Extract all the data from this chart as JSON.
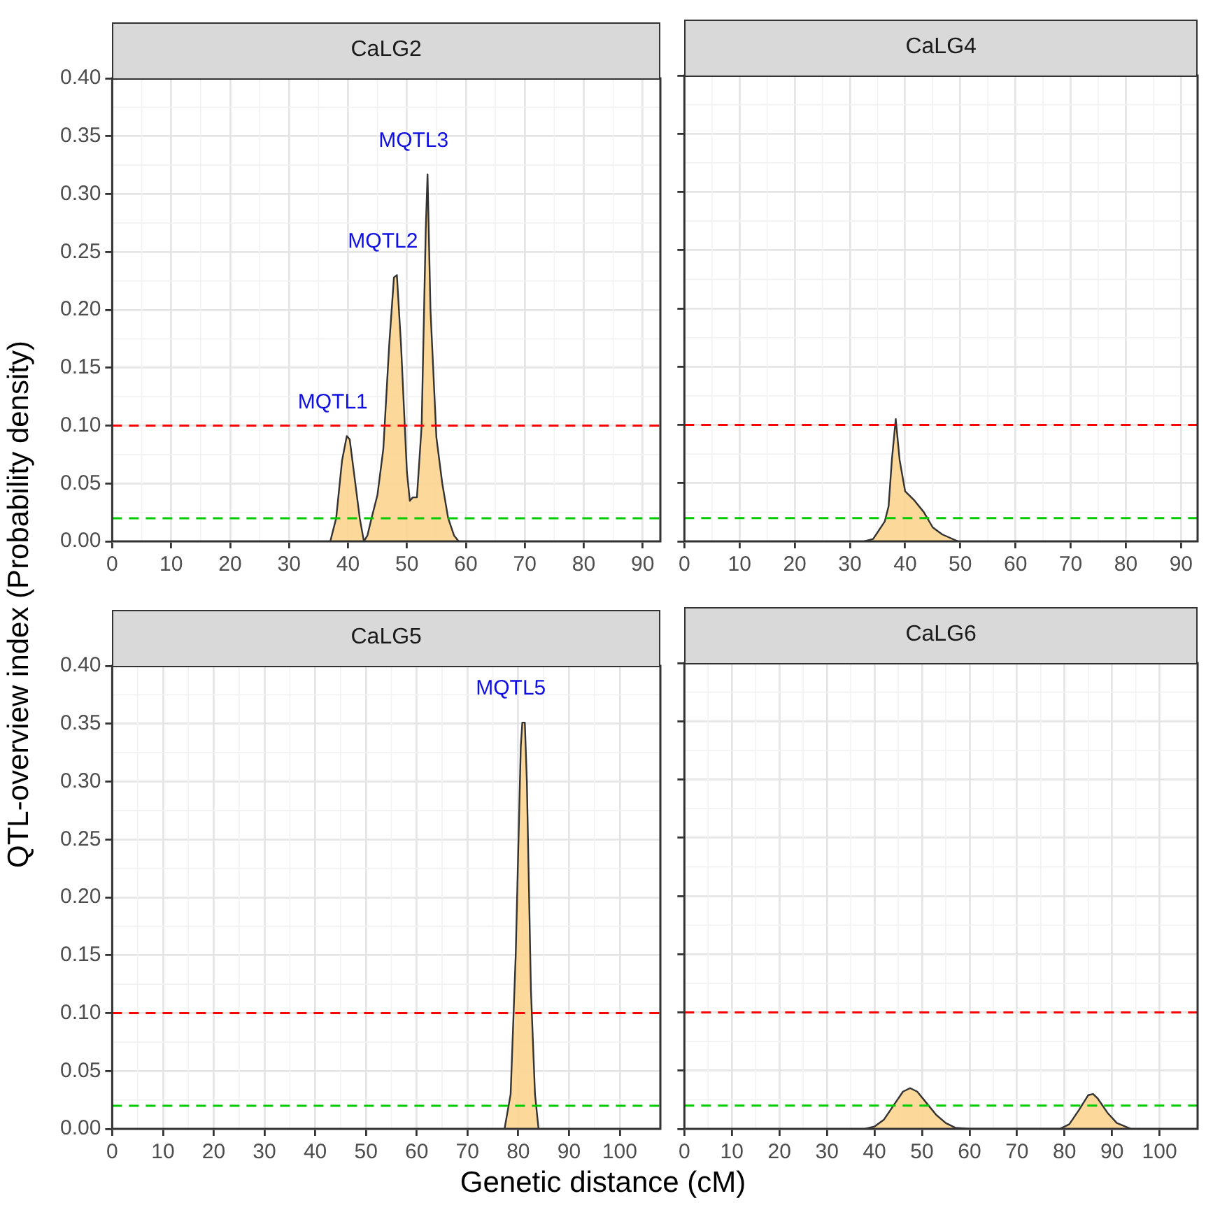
{
  "chart_data": [
    {
      "type": "area",
      "title": "CaLG2",
      "ylabel": "QTL-overview index (Probability density)",
      "series": [
        {
          "color": "#fcd590",
          "x": [
            37,
            38,
            39,
            39.8,
            40.3,
            41,
            42,
            42.7,
            43.3,
            44,
            45,
            46,
            47,
            47.8,
            48.3,
            49,
            50,
            50.5,
            51,
            51.7,
            52.5,
            53.2,
            53.5,
            54,
            55,
            56,
            57,
            58,
            58.8
          ],
          "values": [
            0,
            0.02,
            0.07,
            0.091,
            0.088,
            0.06,
            0.02,
            0,
            0.005,
            0.02,
            0.04,
            0.08,
            0.17,
            0.228,
            0.23,
            0.17,
            0.06,
            0.035,
            0.038,
            0.038,
            0.1,
            0.27,
            0.317,
            0.2,
            0.09,
            0.05,
            0.02,
            0.005,
            0
          ]
        }
      ],
      "xlim": [
        0,
        93
      ],
      "xticks": [
        0,
        10,
        20,
        30,
        40,
        50,
        60,
        70,
        80,
        90
      ],
      "ylim": [
        0,
        0.4
      ],
      "yticks": [
        {
          "value": 0,
          "label": "0.00"
        },
        {
          "value": 0.05,
          "label": "0.05"
        },
        {
          "value": 0.1,
          "label": "0.10"
        },
        {
          "value": 0.15,
          "label": "0.15"
        },
        {
          "value": 0.2,
          "label": "0.20"
        },
        {
          "value": 0.25,
          "label": "0.25"
        },
        {
          "value": 0.3,
          "label": "0.30"
        },
        {
          "value": 0.35,
          "label": "0.35"
        },
        {
          "value": 0.4,
          "label": "0.40"
        }
      ],
      "ref_lines": [
        {
          "axis": "y",
          "value": 0.1,
          "color": "#ff0000",
          "line_style": "dashed"
        },
        {
          "axis": "y",
          "value": 0.02,
          "color": "#00cc00",
          "line_style": "dashed"
        }
      ],
      "annotations": [
        {
          "text": "MQTL1",
          "x": 39.8,
          "y": 0.091
        },
        {
          "text": "MQTL2",
          "x": 48.3,
          "y": 0.23
        },
        {
          "text": "MQTL3",
          "x": 53.5,
          "y": 0.317
        }
      ],
      "grid": true,
      "legend": false
    },
    {
      "type": "area",
      "title": "CaLG4",
      "series": [
        {
          "color": "#fcd590",
          "x": [
            32.6,
            34.2,
            36.3,
            37,
            37.6,
            38.3,
            39,
            40,
            41.7,
            43.4,
            45,
            46.7,
            49.6
          ],
          "values": [
            0,
            0.002,
            0.017,
            0.03,
            0.07,
            0.105,
            0.07,
            0.043,
            0.035,
            0.025,
            0.012,
            0.006,
            0
          ]
        }
      ],
      "xlim": [
        0,
        93
      ],
      "xticks": [
        0,
        10,
        20,
        30,
        40,
        50,
        60,
        70,
        80,
        90
      ],
      "ylim": [
        0,
        0.4
      ],
      "yticks": [
        0,
        0.05,
        0.1,
        0.15,
        0.2,
        0.25,
        0.3,
        0.35,
        0.4
      ],
      "ref_lines": [
        {
          "axis": "y",
          "value": 0.1,
          "color": "#ff0000",
          "line_style": "dashed"
        },
        {
          "axis": "y",
          "value": 0.02,
          "color": "#00cc00",
          "line_style": "dashed"
        }
      ],
      "tick_labels": "x",
      "grid": true,
      "legend": false
    },
    {
      "type": "area",
      "title": "CaLG5",
      "xlabel": "Genetic distance (cM)",
      "series": [
        {
          "color": "#fcd590",
          "x": [
            77.3,
            78.5,
            79.5,
            80.5,
            80.8,
            81.3,
            81.7,
            82.5,
            83.3,
            84
          ],
          "values": [
            0,
            0.03,
            0.15,
            0.33,
            0.351,
            0.351,
            0.3,
            0.12,
            0.03,
            0
          ]
        }
      ],
      "xlim": [
        0,
        108
      ],
      "xticks": [
        0,
        10,
        20,
        30,
        40,
        50,
        60,
        70,
        80,
        90,
        100
      ],
      "ylim": [
        0,
        0.4
      ],
      "yticks": [
        {
          "value": 0,
          "label": "0.00"
        },
        {
          "value": 0.05,
          "label": "0.05"
        },
        {
          "value": 0.1,
          "label": "0.10"
        },
        {
          "value": 0.15,
          "label": "0.15"
        },
        {
          "value": 0.2,
          "label": "0.20"
        },
        {
          "value": 0.25,
          "label": "0.25"
        },
        {
          "value": 0.3,
          "label": "0.30"
        },
        {
          "value": 0.35,
          "label": "0.35"
        },
        {
          "value": 0.4,
          "label": "0.40"
        }
      ],
      "ref_lines": [
        {
          "axis": "y",
          "value": 0.1,
          "color": "#ff0000",
          "line_style": "dashed"
        },
        {
          "axis": "y",
          "value": 0.02,
          "color": "#00cc00",
          "line_style": "dashed"
        }
      ],
      "annotations": [
        {
          "text": "MQTL5",
          "x": 81.3,
          "y": 0.351
        }
      ],
      "grid": true,
      "legend": false
    },
    {
      "type": "area",
      "title": "CaLG6",
      "series": [
        {
          "color": "#fcd590",
          "x": [
            38,
            40,
            42,
            44,
            46,
            47.5,
            49,
            51,
            53,
            55,
            57,
            60,
            79,
            81,
            83,
            85,
            86,
            87,
            89,
            91,
            94
          ],
          "values": [
            0,
            0.002,
            0.008,
            0.02,
            0.032,
            0.035,
            0.032,
            0.022,
            0.012,
            0.005,
            0.001,
            0,
            0,
            0.004,
            0.016,
            0.029,
            0.03,
            0.026,
            0.014,
            0.005,
            0
          ]
        }
      ],
      "xlim": [
        0,
        108
      ],
      "xticks": [
        0,
        10,
        20,
        30,
        40,
        50,
        60,
        70,
        80,
        90,
        100
      ],
      "ylim": [
        0,
        0.4
      ],
      "yticks": [
        0,
        0.05,
        0.1,
        0.15,
        0.2,
        0.25,
        0.3,
        0.35,
        0.4
      ],
      "ref_lines": [
        {
          "axis": "y",
          "value": 0.1,
          "color": "#ff0000",
          "line_style": "dashed"
        },
        {
          "axis": "y",
          "value": 0.02,
          "color": "#00cc00",
          "line_style": "dashed"
        }
      ],
      "tick_labels": "x",
      "grid": true,
      "legend": false
    }
  ]
}
